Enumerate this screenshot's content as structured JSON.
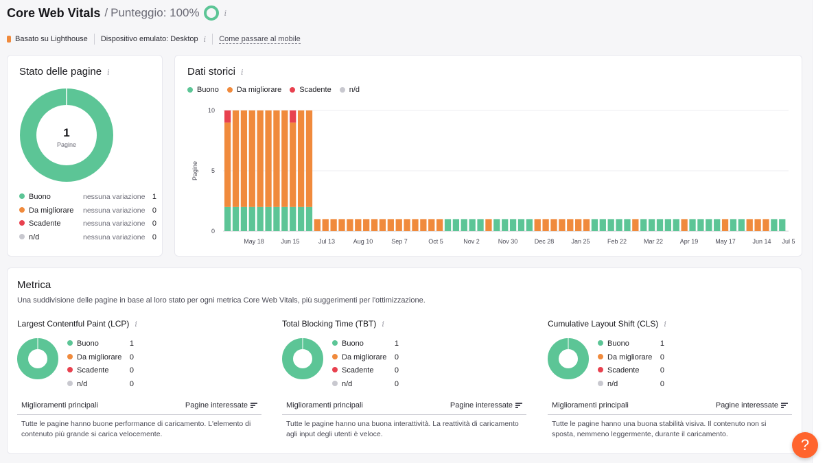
{
  "header": {
    "title": "Core Web Vitals",
    "separator": "/",
    "score_label": "Punteggio: 100%",
    "score_percent": 100
  },
  "subheader": {
    "source": "Basato su Lighthouse",
    "device": "Dispositivo emulato: Desktop",
    "mobile_link": "Come passare al mobile"
  },
  "colors": {
    "good": "#5cc596",
    "improve": "#f08a3c",
    "poor": "#e8414f",
    "na": "#c8c8cf"
  },
  "page_status": {
    "title": "Stato delle pagine",
    "total": "1",
    "total_label": "Pagine",
    "rows": [
      {
        "label": "Buono",
        "change": "nessuna variazione",
        "count": "1"
      },
      {
        "label": "Da migliorare",
        "change": "nessuna variazione",
        "count": "0"
      },
      {
        "label": "Scadente",
        "change": "nessuna variazione",
        "count": "0"
      },
      {
        "label": "n/d",
        "change": "nessuna variazione",
        "count": "0"
      }
    ]
  },
  "history": {
    "title": "Dati storici",
    "legend": [
      "Buono",
      "Da migliorare",
      "Scadente",
      "n/d"
    ]
  },
  "chart_data": {
    "type": "bar",
    "stacked": true,
    "title": "Dati storici",
    "ylabel": "Pagine",
    "ylim": [
      0,
      10
    ],
    "yticks": [
      0,
      5,
      10
    ],
    "xticks": [
      "May 18",
      "Jun 15",
      "Jul 13",
      "Aug 10",
      "Sep 7",
      "Oct 5",
      "Nov 2",
      "Nov 30",
      "Dec 28",
      "Jan 25",
      "Feb 22",
      "Mar 22",
      "Apr 19",
      "May 17",
      "Jun 14",
      "Jul 5"
    ],
    "series": [
      {
        "name": "Buono",
        "values": [
          2,
          2,
          2,
          2,
          2,
          2,
          2,
          2,
          2,
          2,
          2,
          0,
          0,
          0,
          0,
          0,
          0,
          0,
          0,
          0,
          0,
          0,
          0,
          0,
          0,
          0,
          0,
          1,
          1,
          1,
          1,
          1,
          0,
          1,
          1,
          1,
          1,
          1,
          0,
          0,
          0,
          0,
          0,
          0,
          0,
          1,
          1,
          1,
          1,
          1,
          0,
          1,
          1,
          1,
          1,
          1,
          0,
          1,
          1,
          1,
          1,
          0,
          1,
          1,
          0,
          0,
          0,
          1,
          1
        ]
      },
      {
        "name": "Da migliorare",
        "values": [
          7,
          8,
          8,
          8,
          8,
          8,
          8,
          8,
          7,
          8,
          8,
          1,
          1,
          1,
          1,
          1,
          1,
          1,
          1,
          1,
          1,
          1,
          1,
          1,
          1,
          1,
          1,
          0,
          0,
          0,
          0,
          0,
          1,
          0,
          0,
          0,
          0,
          0,
          1,
          1,
          1,
          1,
          1,
          1,
          1,
          0,
          0,
          0,
          0,
          0,
          1,
          0,
          0,
          0,
          0,
          0,
          1,
          0,
          0,
          0,
          0,
          1,
          0,
          0,
          1,
          1,
          1,
          0,
          0
        ]
      },
      {
        "name": "Scadente",
        "values": [
          1,
          0,
          0,
          0,
          0,
          0,
          0,
          0,
          1,
          0,
          0,
          0,
          0,
          0,
          0,
          0,
          0,
          0,
          0,
          0,
          0,
          0,
          0,
          0,
          0,
          0,
          0,
          0,
          0,
          0,
          0,
          0,
          0,
          0,
          0,
          0,
          0,
          0,
          0,
          0,
          0,
          0,
          0,
          0,
          0,
          0,
          0,
          0,
          0,
          0,
          0,
          0,
          0,
          0,
          0,
          0,
          0,
          0,
          0,
          0,
          0,
          0,
          0,
          0,
          0,
          0,
          0,
          0,
          0
        ]
      },
      {
        "name": "n/d",
        "values": [
          0,
          0,
          0,
          0,
          0,
          0,
          0,
          0,
          0,
          0,
          0,
          0,
          0,
          0,
          0,
          0,
          0,
          0,
          0,
          0,
          0,
          0,
          0,
          0,
          0,
          0,
          0,
          0,
          0,
          0,
          0,
          0,
          0,
          0,
          0,
          0,
          0,
          0,
          0,
          0,
          0,
          0,
          0,
          0,
          0,
          0,
          0,
          0,
          0,
          0,
          0,
          0,
          0,
          0,
          0,
          0,
          0,
          0,
          0,
          0,
          0,
          0,
          0,
          0,
          0,
          0,
          0,
          0,
          0
        ]
      }
    ]
  },
  "metrics": {
    "title": "Metrica",
    "description": "Una suddivisione delle pagine in base al loro stato per ogni metrica Core Web Vitals, più suggerimenti per l'ottimizzazione.",
    "items": [
      {
        "title": "Largest Contentful Paint (LCP)",
        "rows": [
          {
            "label": "Buono",
            "count": "1"
          },
          {
            "label": "Da migliorare",
            "count": "0"
          },
          {
            "label": "Scadente",
            "count": "0"
          },
          {
            "label": "n/d",
            "count": "0"
          }
        ],
        "col1": "Miglioramenti principali",
        "col2": "Pagine interessate",
        "note": "Tutte le pagine hanno buone performance di caricamento. L'elemento di contenuto più grande si carica velocemente."
      },
      {
        "title": "Total Blocking Time (TBT)",
        "rows": [
          {
            "label": "Buono",
            "count": "1"
          },
          {
            "label": "Da migliorare",
            "count": "0"
          },
          {
            "label": "Scadente",
            "count": "0"
          },
          {
            "label": "n/d",
            "count": "0"
          }
        ],
        "col1": "Miglioramenti principali",
        "col2": "Pagine interessate",
        "note": "Tutte le pagine hanno una buona interattività. La reattività di caricamento agli input degli utenti è veloce."
      },
      {
        "title": "Cumulative Layout Shift (CLS)",
        "rows": [
          {
            "label": "Buono",
            "count": "1"
          },
          {
            "label": "Da migliorare",
            "count": "0"
          },
          {
            "label": "Scadente",
            "count": "0"
          },
          {
            "label": "n/d",
            "count": "0"
          }
        ],
        "col1": "Miglioramenti principali",
        "col2": "Pagine interessate",
        "note": "Tutte le pagine hanno una buona stabilità visiva. Il contenuto non si sposta, nemmeno leggermente, durante il caricamento."
      }
    ]
  },
  "help": {
    "label": "?"
  }
}
